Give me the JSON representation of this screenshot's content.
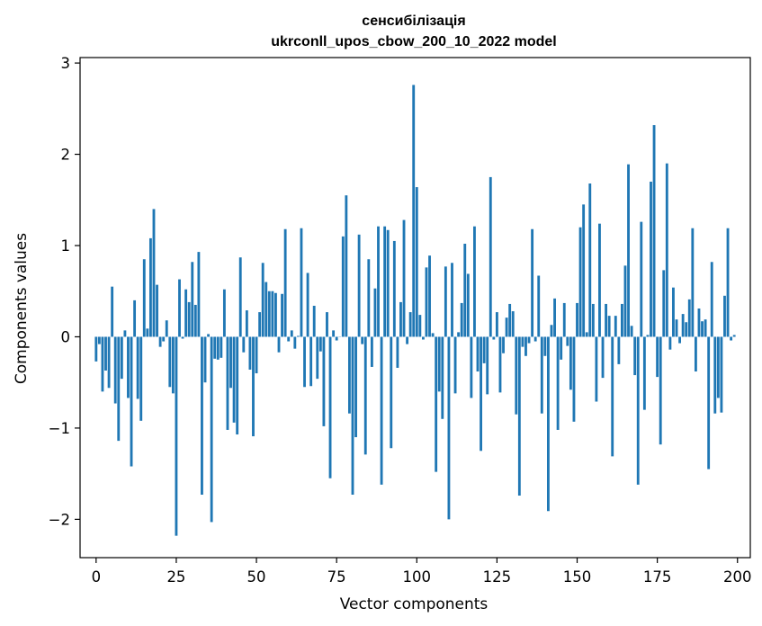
{
  "chart_data": {
    "type": "bar",
    "title": "сенсибілізація",
    "subtitle": "ukrconll_upos_cbow_200_10_2022 model",
    "xlabel": "Vector components",
    "ylabel": "Components values",
    "xlim": [
      -5,
      204
    ],
    "ylim": [
      -2.42,
      3.06
    ],
    "xticks": [
      0,
      25,
      50,
      75,
      100,
      125,
      150,
      175,
      200
    ],
    "yticks": [
      -2,
      -1,
      0,
      1,
      2,
      3
    ],
    "grid": false,
    "bar_color": "#1f77b4",
    "x": [
      0,
      1,
      2,
      3,
      4,
      5,
      6,
      7,
      8,
      9,
      10,
      11,
      12,
      13,
      14,
      15,
      16,
      17,
      18,
      19,
      20,
      21,
      22,
      23,
      24,
      25,
      26,
      27,
      28,
      29,
      30,
      31,
      32,
      33,
      34,
      35,
      36,
      37,
      38,
      39,
      40,
      41,
      42,
      43,
      44,
      45,
      46,
      47,
      48,
      49,
      50,
      51,
      52,
      53,
      54,
      55,
      56,
      57,
      58,
      59,
      60,
      61,
      62,
      63,
      64,
      65,
      66,
      67,
      68,
      69,
      70,
      71,
      72,
      73,
      74,
      75,
      76,
      77,
      78,
      79,
      80,
      81,
      82,
      83,
      84,
      85,
      86,
      87,
      88,
      89,
      90,
      91,
      92,
      93,
      94,
      95,
      96,
      97,
      98,
      99,
      100,
      101,
      102,
      103,
      104,
      105,
      106,
      107,
      108,
      109,
      110,
      111,
      112,
      113,
      114,
      115,
      116,
      117,
      118,
      119,
      120,
      121,
      122,
      123,
      124,
      125,
      126,
      127,
      128,
      129,
      130,
      131,
      132,
      133,
      134,
      135,
      136,
      137,
      138,
      139,
      140,
      141,
      142,
      143,
      144,
      145,
      146,
      147,
      148,
      149,
      150,
      151,
      152,
      153,
      154,
      155,
      156,
      157,
      158,
      159,
      160,
      161,
      162,
      163,
      164,
      165,
      166,
      167,
      168,
      169,
      170,
      171,
      172,
      173,
      174,
      175,
      176,
      177,
      178,
      179,
      180,
      181,
      182,
      183,
      184,
      185,
      186,
      187,
      188,
      189,
      190,
      191,
      192,
      193,
      194,
      195,
      196,
      197,
      198,
      199
    ],
    "values": [
      -0.27,
      -0.08,
      -0.6,
      -0.37,
      -0.56,
      0.55,
      -0.73,
      -1.14,
      -0.46,
      0.07,
      -0.67,
      -1.42,
      0.4,
      -0.68,
      -0.92,
      0.85,
      0.09,
      1.08,
      1.4,
      0.57,
      -0.11,
      -0.05,
      0.18,
      -0.55,
      -0.62,
      -2.18,
      0.63,
      -0.02,
      0.52,
      0.38,
      0.82,
      0.35,
      0.93,
      -1.73,
      -0.5,
      0.03,
      -2.03,
      -0.24,
      -0.25,
      -0.23,
      0.52,
      -1.02,
      -0.56,
      -0.94,
      -1.07,
      0.87,
      -0.17,
      0.29,
      -0.36,
      -1.09,
      -0.4,
      0.27,
      0.81,
      0.6,
      0.5,
      0.5,
      0.48,
      -0.17,
      0.47,
      1.18,
      -0.05,
      0.07,
      -0.13,
      0.01,
      1.19,
      -0.55,
      0.7,
      -0.54,
      0.34,
      -0.46,
      -0.16,
      -0.98,
      0.27,
      -1.55,
      0.07,
      -0.04,
      0.0,
      1.1,
      1.55,
      -0.84,
      -1.73,
      -1.1,
      1.12,
      -0.08,
      -1.29,
      0.85,
      -0.33,
      0.53,
      1.21,
      -1.62,
      1.21,
      1.17,
      -1.22,
      1.05,
      -0.34,
      0.38,
      1.28,
      -0.08,
      0.27,
      2.76,
      1.64,
      0.24,
      -0.03,
      0.76,
      0.89,
      0.04,
      -1.48,
      -0.6,
      -0.9,
      0.77,
      -2.0,
      0.81,
      -0.62,
      0.05,
      0.37,
      1.02,
      0.69,
      -0.67,
      1.21,
      -0.38,
      -1.25,
      -0.29,
      -0.63,
      1.75,
      -0.03,
      0.27,
      -0.61,
      -0.18,
      0.21,
      0.36,
      0.28,
      -0.85,
      -1.74,
      -0.11,
      -0.21,
      -0.07,
      1.18,
      -0.05,
      0.67,
      -0.84,
      -0.21,
      -1.91,
      0.13,
      0.42,
      -1.02,
      -0.25,
      0.37,
      -0.1,
      -0.58,
      -0.93,
      0.37,
      1.2,
      1.45,
      0.05,
      1.68,
      0.36,
      -0.71,
      1.24,
      -0.45,
      0.36,
      0.23,
      -1.31,
      0.23,
      -0.3,
      0.36,
      0.78,
      1.89,
      0.12,
      -0.42,
      -1.62,
      1.26,
      -0.8,
      0.02,
      1.7,
      2.32,
      -0.44,
      -1.18,
      0.73,
      1.9,
      -0.14,
      0.54,
      0.19,
      -0.07,
      0.25,
      0.16,
      0.41,
      1.19,
      -0.38,
      0.31,
      0.17,
      0.19,
      -1.45,
      0.82,
      -0.84,
      -0.67,
      -0.83,
      0.45,
      1.19,
      -0.04,
      0.02
    ]
  }
}
